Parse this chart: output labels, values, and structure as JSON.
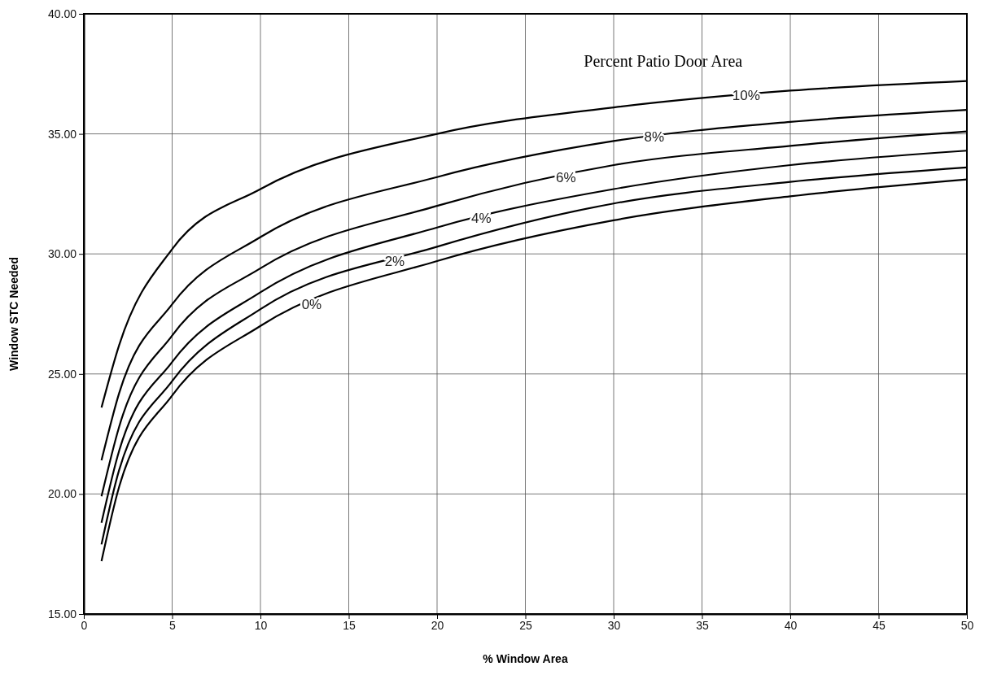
{
  "chart_data": {
    "type": "line",
    "xlabel": "% Window Area",
    "ylabel": "Window STC Needed",
    "legend_title": "Percent Patio Door Area",
    "xlim": [
      0,
      50
    ],
    "xticks": [
      0,
      5,
      10,
      15,
      20,
      25,
      30,
      35,
      40,
      45,
      50
    ],
    "ylim": [
      15,
      40
    ],
    "yticks": [
      {
        "value": 15,
        "label": "15.00"
      },
      {
        "value": 20,
        "label": "20.00"
      },
      {
        "value": 25,
        "label": "25.00"
      },
      {
        "value": 30,
        "label": "30.00"
      },
      {
        "value": 35,
        "label": "35.00"
      },
      {
        "value": 40,
        "label": "40.00"
      }
    ],
    "grid": true,
    "marker": "none",
    "line_style": "solid",
    "x": [
      1,
      2,
      5,
      10,
      20,
      30,
      40,
      50
    ],
    "series": [
      {
        "color": "#000000",
        "values": [
          23.6,
          26.2,
          30.2,
          32.7,
          35.0,
          36.1,
          36.8,
          37.2
        ]
      },
      {
        "color": "#000000",
        "values": [
          21.4,
          24.2,
          27.9,
          30.7,
          33.2,
          34.7,
          35.5,
          36.0
        ]
      },
      {
        "color": "#000000",
        "values": [
          19.9,
          22.8,
          26.6,
          29.4,
          32.0,
          33.7,
          34.5,
          35.1
        ]
      },
      {
        "color": "#000000",
        "values": [
          18.8,
          21.8,
          25.5,
          28.4,
          31.1,
          32.7,
          33.7,
          34.3
        ]
      },
      {
        "color": "#000000",
        "values": [
          17.9,
          21.0,
          24.7,
          27.7,
          30.3,
          32.1,
          33.0,
          33.6
        ]
      },
      {
        "color": "#000000",
        "values": [
          17.2,
          20.3,
          24.1,
          27.0,
          29.7,
          31.4,
          32.4,
          33.1
        ]
      }
    ],
    "annotations": [
      {
        "text": "10%",
        "x": 37.5,
        "y": 36.6
      },
      {
        "text": "8%",
        "x": 32.3,
        "y": 34.9
      },
      {
        "text": "6%",
        "x": 27.3,
        "y": 33.2
      },
      {
        "text": "4%",
        "x": 22.5,
        "y": 31.5
      },
      {
        "text": "2%",
        "x": 17.6,
        "y": 29.7
      },
      {
        "text": "0%",
        "x": 12.9,
        "y": 27.9
      }
    ]
  }
}
